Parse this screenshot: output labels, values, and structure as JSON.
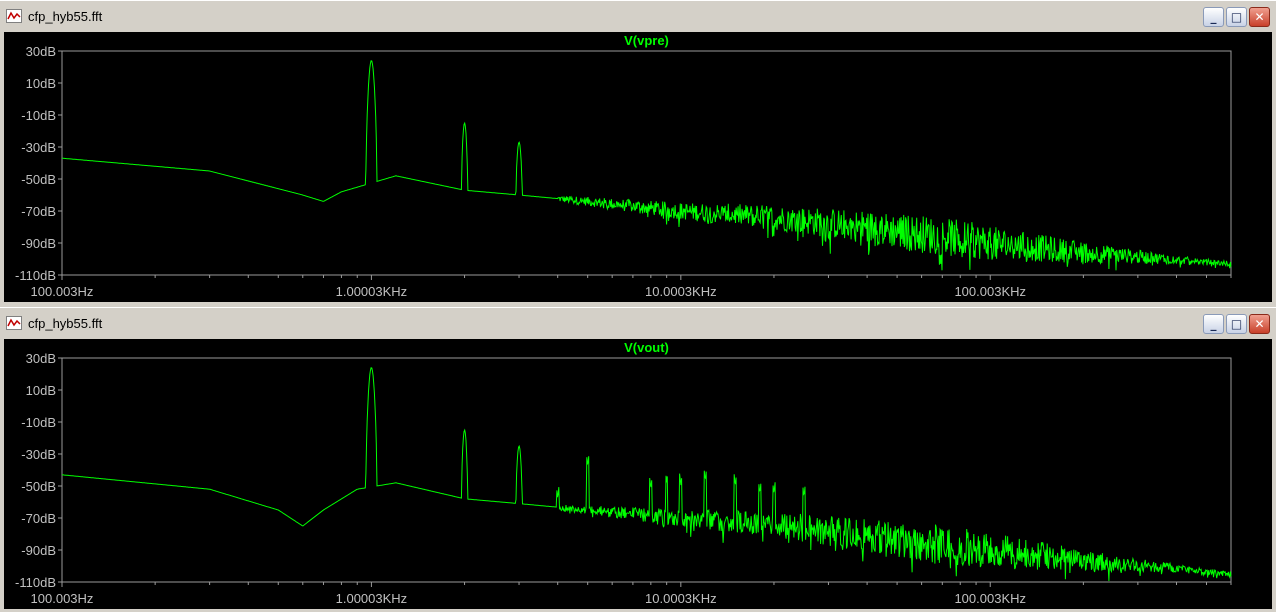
{
  "windows": [
    {
      "title": "cfp_hyb55.fft",
      "controls": {
        "minimize": "_",
        "maximize": "□",
        "close": "✕"
      },
      "icon": "waveform-icon",
      "chart_data": {
        "type": "line",
        "title": "V(vpre)",
        "x_scale": "log",
        "xlim": [
          100.003,
          600000
        ],
        "ylim": [
          -110,
          30
        ],
        "y_ticks": [
          "30dB",
          "10dB",
          "-10dB",
          "-30dB",
          "-50dB",
          "-70dB",
          "-90dB",
          "-110dB"
        ],
        "x_ticks": [
          "100.003Hz",
          "1.00003KHz",
          "10.0003KHz",
          "100.003KHz"
        ],
        "series_color": "#00ff00",
        "floor_points": [
          [
            100,
            -37
          ],
          [
            300,
            -45
          ],
          [
            600,
            -60
          ],
          [
            700,
            -64
          ],
          [
            800,
            -58
          ],
          [
            1200,
            -48
          ],
          [
            2000,
            -57
          ],
          [
            3000,
            -60
          ],
          [
            5000,
            -64
          ],
          [
            10000,
            -70
          ],
          [
            20000,
            -74
          ],
          [
            40000,
            -80
          ],
          [
            100000,
            -90
          ],
          [
            200000,
            -96
          ],
          [
            600000,
            -103
          ]
        ],
        "peaks": [
          [
            1000,
            24
          ],
          [
            2000,
            -15
          ],
          [
            3000,
            -27
          ]
        ],
        "spurs": []
      }
    },
    {
      "title": "cfp_hyb55.fft",
      "controls": {
        "minimize": "_",
        "maximize": "□",
        "close": "✕"
      },
      "icon": "waveform-icon",
      "chart_data": {
        "type": "line",
        "title": "V(vout)",
        "x_scale": "log",
        "xlim": [
          100.003,
          600000
        ],
        "ylim": [
          -110,
          30
        ],
        "y_ticks": [
          "30dB",
          "10dB",
          "-10dB",
          "-30dB",
          "-50dB",
          "-70dB",
          "-90dB",
          "-110dB"
        ],
        "x_ticks": [
          "100.003Hz",
          "1.00003KHz",
          "10.0003KHz",
          "100.003KHz"
        ],
        "series_color": "#00ff00",
        "floor_points": [
          [
            100,
            -43
          ],
          [
            300,
            -52
          ],
          [
            500,
            -65
          ],
          [
            600,
            -75
          ],
          [
            700,
            -65
          ],
          [
            900,
            -52
          ],
          [
            1200,
            -48
          ],
          [
            2000,
            -58
          ],
          [
            3000,
            -61
          ],
          [
            5000,
            -65
          ],
          [
            10000,
            -70
          ],
          [
            20000,
            -74
          ],
          [
            40000,
            -81
          ],
          [
            100000,
            -90
          ],
          [
            200000,
            -96
          ],
          [
            600000,
            -105
          ]
        ],
        "peaks": [
          [
            1000,
            24
          ],
          [
            2000,
            -15
          ],
          [
            3000,
            -25
          ]
        ],
        "spurs": [
          [
            4000,
            -58
          ],
          [
            5000,
            -38
          ],
          [
            8000,
            -52
          ],
          [
            9000,
            -48
          ],
          [
            10000,
            -50
          ],
          [
            12000,
            -47
          ],
          [
            15000,
            -50
          ],
          [
            18000,
            -55
          ],
          [
            20000,
            -55
          ],
          [
            25000,
            -57
          ]
        ]
      }
    }
  ]
}
